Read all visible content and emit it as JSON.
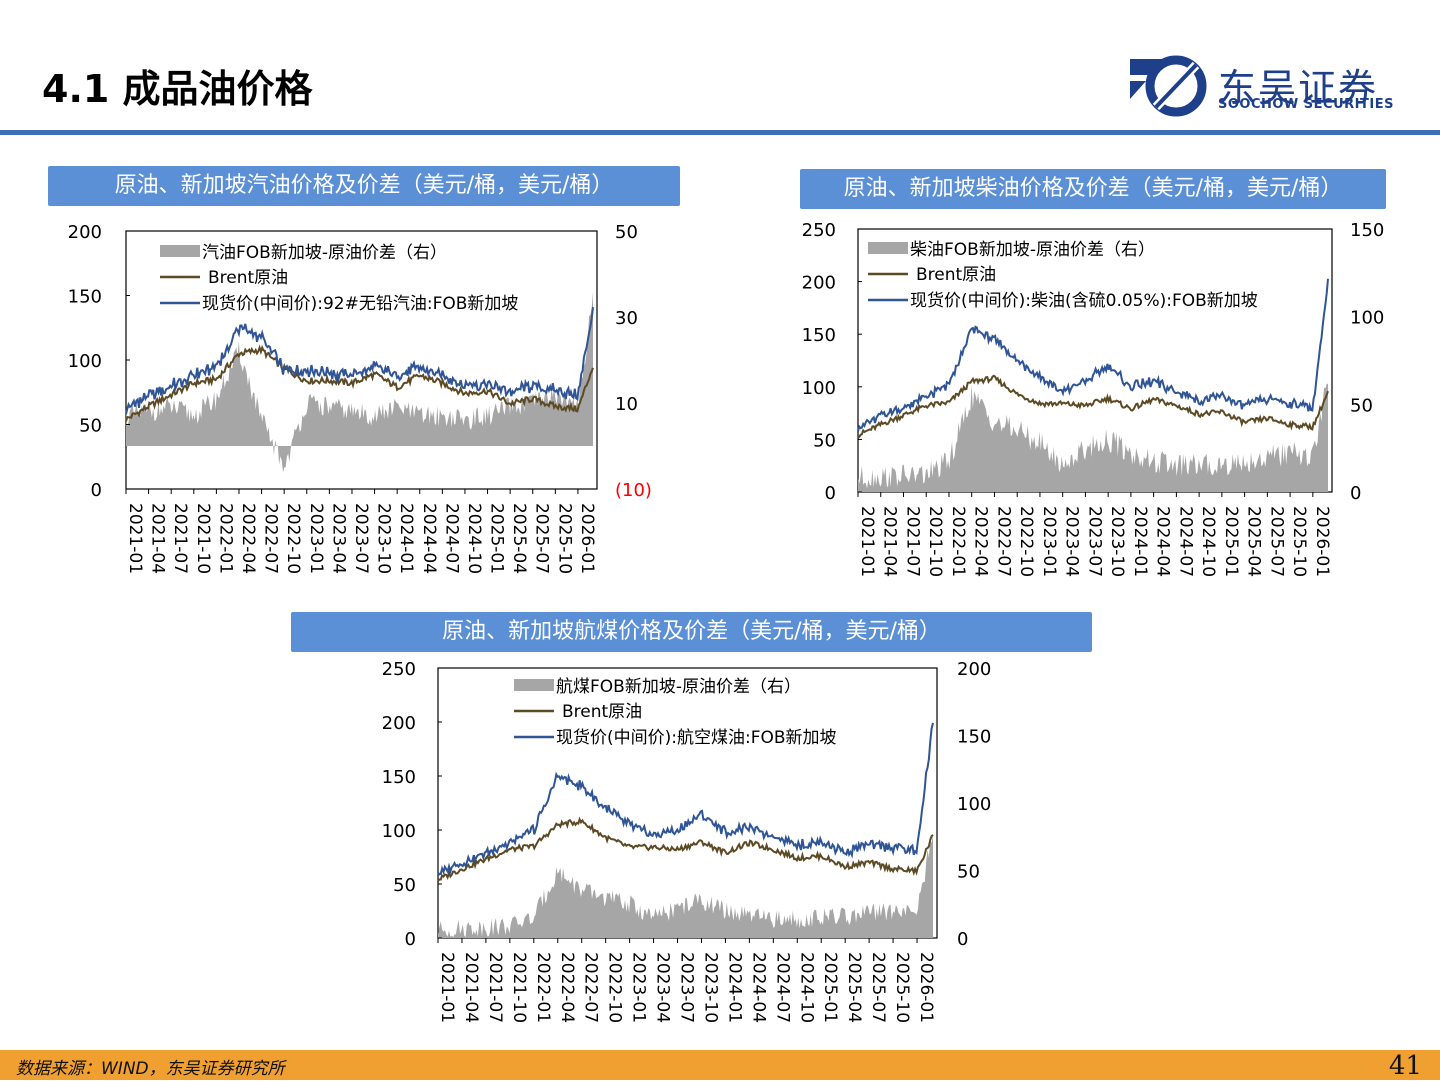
{
  "header": {
    "title": "4.1 成品油价格",
    "logo_cn": "东吴证券",
    "logo_en": "SOOCHOW SECURITIES"
  },
  "footer": {
    "source": "数据来源：WIND，东吴证券研究所",
    "page_number": "41"
  },
  "colors": {
    "accent": "#3f6fb5",
    "header_bg": "#5b8fd6",
    "spread_bar": "#a6a6a6",
    "brent": "#5c4a24",
    "product": "#2f5597",
    "negative_label": "#ff0000",
    "footer_bg": "#f0a030"
  },
  "chart_data": [
    {
      "id": "gasoline",
      "type": "line+area",
      "title": "原油、新加坡汽油价格及价差（美元/桶，美元/桶）",
      "left_axis": {
        "min": 0,
        "max": 200,
        "ticks": [
          "0",
          "50",
          "100",
          "150",
          "200"
        ]
      },
      "right_axis": {
        "min": -10,
        "max": 50,
        "ticks": [
          "(10)",
          "10",
          "30",
          "50"
        ],
        "tick_values": [
          -10,
          10,
          30,
          50
        ]
      },
      "x_ticks": [
        "2021-01",
        "2021-04",
        "2021-07",
        "2021-10",
        "2022-01",
        "2022-04",
        "2022-07",
        "2022-10",
        "2023-01",
        "2023-04",
        "2023-07",
        "2023-10",
        "2024-01",
        "2024-04",
        "2024-07",
        "2024-10",
        "2025-01",
        "2025-04",
        "2025-07",
        "2025-10",
        "2026-01"
      ],
      "legend": [
        "汽油FOB新加坡-原油价差（右）",
        "Brent原油",
        "现货价(中间价):92#无铅汽油:FOB新加坡"
      ],
      "months": [
        "2021-01",
        "2021-04",
        "2021-07",
        "2021-10",
        "2022-01",
        "2022-04",
        "2022-07",
        "2022-10",
        "2023-01",
        "2023-04",
        "2023-07",
        "2023-10",
        "2024-01",
        "2024-04",
        "2024-07",
        "2024-10",
        "2025-01",
        "2025-04",
        "2025-07",
        "2025-10",
        "2026-01",
        "2026-03"
      ],
      "brent": [
        54,
        64,
        73,
        82,
        85,
        105,
        108,
        93,
        84,
        84,
        82,
        89,
        79,
        88,
        82,
        74,
        76,
        66,
        70,
        64,
        62,
        95
      ],
      "product": [
        62,
        72,
        80,
        88,
        95,
        125,
        118,
        92,
        92,
        90,
        88,
        95,
        88,
        94,
        88,
        80,
        82,
        75,
        80,
        76,
        72,
        140
      ],
      "spread": [
        7,
        8,
        9,
        7,
        11,
        22,
        6,
        -5,
        10,
        9,
        8,
        7,
        9,
        7,
        7,
        6,
        7,
        9,
        10,
        12,
        9,
        35
      ]
    },
    {
      "id": "diesel",
      "type": "line+area",
      "title": "原油、新加坡柴油价格及价差（美元/桶，美元/桶）",
      "left_axis": {
        "min": 0,
        "max": 250,
        "ticks": [
          "0",
          "50",
          "100",
          "150",
          "200",
          "250"
        ]
      },
      "right_axis": {
        "min": 0,
        "max": 150,
        "ticks": [
          "0",
          "50",
          "100",
          "150"
        ],
        "tick_values": [
          0,
          50,
          100,
          150
        ]
      },
      "x_ticks": [
        "2021-01",
        "2021-04",
        "2021-07",
        "2021-10",
        "2022-01",
        "2022-04",
        "2022-07",
        "2022-10",
        "2023-01",
        "2023-04",
        "2023-07",
        "2023-10",
        "2024-01",
        "2024-04",
        "2024-07",
        "2024-10",
        "2025-01",
        "2025-04",
        "2025-07",
        "2025-10",
        "2026-01"
      ],
      "legend": [
        "柴油FOB新加坡-原油价差（右）",
        "Brent原油",
        "现货价(中间价):柴油(含硫0.05%):FOB新加坡"
      ],
      "months": [
        "2021-01",
        "2021-04",
        "2021-07",
        "2021-10",
        "2022-01",
        "2022-04",
        "2022-07",
        "2022-10",
        "2023-01",
        "2023-04",
        "2023-07",
        "2023-10",
        "2024-01",
        "2024-04",
        "2024-07",
        "2024-10",
        "2025-01",
        "2025-04",
        "2025-07",
        "2025-10",
        "2026-01",
        "2026-03"
      ],
      "brent": [
        54,
        64,
        73,
        82,
        85,
        105,
        108,
        93,
        84,
        84,
        82,
        89,
        79,
        88,
        82,
        74,
        76,
        66,
        70,
        64,
        62,
        95
      ],
      "product": [
        62,
        72,
        80,
        90,
        102,
        155,
        145,
        125,
        110,
        95,
        105,
        120,
        100,
        105,
        95,
        88,
        90,
        82,
        88,
        85,
        80,
        200
      ],
      "spread": [
        8,
        9,
        9,
        10,
        17,
        55,
        40,
        35,
        28,
        15,
        25,
        30,
        22,
        17,
        15,
        15,
        16,
        17,
        20,
        22,
        20,
        65
      ]
    },
    {
      "id": "jet",
      "type": "line+area",
      "title": "原油、新加坡航煤价格及价差（美元/桶，美元/桶）",
      "left_axis": {
        "min": 0,
        "max": 250,
        "ticks": [
          "0",
          "50",
          "100",
          "150",
          "200",
          "250"
        ]
      },
      "right_axis": {
        "min": 0,
        "max": 200,
        "ticks": [
          "0",
          "50",
          "100",
          "150",
          "200"
        ],
        "tick_values": [
          0,
          50,
          100,
          150,
          200
        ]
      },
      "x_ticks": [
        "2021-01",
        "2021-04",
        "2021-07",
        "2021-10",
        "2022-01",
        "2022-04",
        "2022-07",
        "2022-10",
        "2023-01",
        "2023-04",
        "2023-07",
        "2023-10",
        "2024-01",
        "2024-04",
        "2024-07",
        "2024-10",
        "2025-01",
        "2025-04",
        "2025-07",
        "2025-10",
        "2026-01"
      ],
      "legend": [
        "航煤FOB新加坡-原油价差（右）",
        "Brent原油",
        "现货价(中间价):航空煤油:FOB新加坡"
      ],
      "months": [
        "2021-01",
        "2021-04",
        "2021-07",
        "2021-10",
        "2022-01",
        "2022-04",
        "2022-07",
        "2022-10",
        "2023-01",
        "2023-04",
        "2023-07",
        "2023-10",
        "2024-01",
        "2024-04",
        "2024-07",
        "2024-10",
        "2025-01",
        "2025-04",
        "2025-07",
        "2025-10",
        "2026-01",
        "2026-03"
      ],
      "brent": [
        54,
        64,
        73,
        82,
        85,
        105,
        108,
        93,
        84,
        84,
        82,
        89,
        79,
        88,
        82,
        74,
        76,
        66,
        70,
        64,
        62,
        95
      ],
      "product": [
        60,
        70,
        78,
        88,
        100,
        150,
        140,
        120,
        105,
        95,
        100,
        115,
        98,
        102,
        94,
        86,
        88,
        80,
        86,
        84,
        80,
        200
      ],
      "spread": [
        6,
        7,
        8,
        9,
        15,
        50,
        35,
        30,
        25,
        15,
        22,
        28,
        20,
        16,
        14,
        14,
        15,
        16,
        18,
        20,
        18,
        80
      ]
    }
  ]
}
